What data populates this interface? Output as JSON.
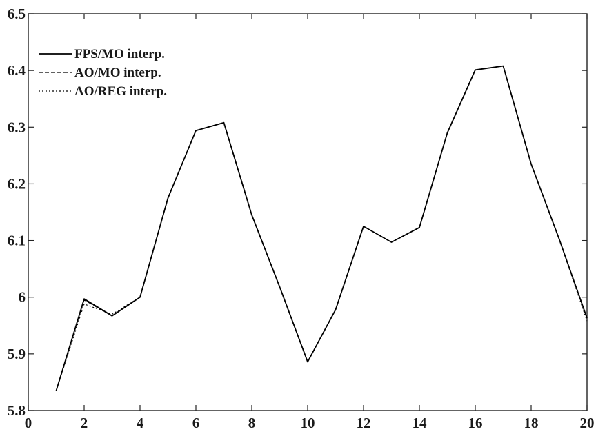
{
  "chart_data": {
    "type": "line",
    "title": "",
    "xlabel": "",
    "ylabel": "",
    "xlim": [
      0,
      20
    ],
    "ylim": [
      5.8,
      6.5
    ],
    "grid": false,
    "legend_position": "top-left",
    "x_ticks": [
      "0",
      "2",
      "4",
      "6",
      "8",
      "10",
      "12",
      "14",
      "16",
      "18",
      "20"
    ],
    "y_ticks": [
      "5.8",
      "5.9",
      "6",
      "6.1",
      "6.2",
      "6.3",
      "6.4",
      "6.5"
    ],
    "x": [
      1,
      2,
      3,
      4,
      5,
      6,
      7,
      8,
      9,
      10,
      11,
      12,
      13,
      14,
      15,
      16,
      17,
      18,
      19,
      20
    ],
    "series": [
      {
        "name": "FPS/MO interp.",
        "style": "solid",
        "color": "#000000",
        "values": [
          5.835,
          5.997,
          5.967,
          6.0,
          6.175,
          6.294,
          6.308,
          6.145,
          6.018,
          5.886,
          5.978,
          6.125,
          6.097,
          6.123,
          6.29,
          6.401,
          6.408,
          6.235,
          6.103,
          5.963
        ]
      },
      {
        "name": "AO/MO interp.",
        "style": "dashed",
        "color": "#000000",
        "values": [
          5.835,
          5.995,
          5.967,
          6.0,
          6.175,
          6.294,
          6.308,
          6.145,
          6.018,
          5.886,
          5.978,
          6.125,
          6.097,
          6.123,
          6.29,
          6.401,
          6.408,
          6.235,
          6.103,
          5.963
        ]
      },
      {
        "name": "AO/REG interp.",
        "style": "dotted",
        "color": "#000000",
        "values": [
          5.835,
          5.988,
          5.97,
          6.0,
          6.175,
          6.294,
          6.308,
          6.145,
          6.018,
          5.886,
          5.978,
          6.125,
          6.097,
          6.123,
          6.29,
          6.401,
          6.408,
          6.235,
          6.103,
          5.958
        ]
      }
    ]
  }
}
